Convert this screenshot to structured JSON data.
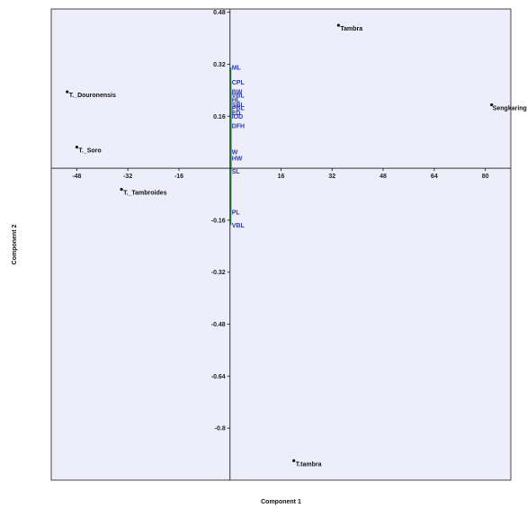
{
  "chart_data": {
    "type": "scatter",
    "title": "",
    "xlabel": "Component 1",
    "ylabel": "Component 2",
    "xlim": [
      -56,
      88
    ],
    "ylim": [
      -0.96,
      0.49
    ],
    "x_ticks": [
      -48,
      -32,
      -16,
      16,
      32,
      48,
      64,
      80
    ],
    "y_ticks": [
      0.48,
      0.32,
      0.16,
      -0.16,
      -0.32,
      -0.48,
      -0.64,
      -0.8
    ],
    "grid": false,
    "points": [
      {
        "label": "Tambra",
        "x": 34,
        "y": 0.44
      },
      {
        "label": "Sengkaring",
        "x": 82,
        "y": 0.195
      },
      {
        "label": "T._Douronensis",
        "x": -51,
        "y": 0.235
      },
      {
        "label": "T._Soro",
        "x": -48,
        "y": 0.065
      },
      {
        "label": "T._Tambroides",
        "x": -34,
        "y": -0.065
      },
      {
        "label": "T.tambra",
        "x": 20,
        "y": -0.9
      }
    ],
    "loadings": [
      {
        "label": "ML",
        "x": 0,
        "y": 0.31
      },
      {
        "label": "CPL",
        "x": 0,
        "y": 0.265
      },
      {
        "label": "BW",
        "x": 0,
        "y": 0.235
      },
      {
        "label": "VBL",
        "x": 0,
        "y": 0.225
      },
      {
        "label": "HL",
        "x": 0,
        "y": 0.21
      },
      {
        "label": "SBL",
        "x": 0,
        "y": 0.195
      },
      {
        "label": "PBL",
        "x": 0,
        "y": 0.185
      },
      {
        "label": "ED",
        "x": 0,
        "y": 0.17
      },
      {
        "label": "IOD",
        "x": 0,
        "y": 0.16
      },
      {
        "label": "DFH",
        "x": 0,
        "y": 0.13
      },
      {
        "label": "W",
        "x": 0,
        "y": 0.05
      },
      {
        "label": "HW",
        "x": 0,
        "y": 0.03
      },
      {
        "label": "SL",
        "x": 0,
        "y": -0.01
      },
      {
        "label": "PL",
        "x": 0,
        "y": -0.135
      },
      {
        "label": "VBL",
        "x": 0,
        "y": -0.175
      }
    ],
    "colors": {
      "plot_background": "#eeeefb",
      "points": "#111111",
      "loading_labels": "#2b3bb8",
      "loading_lines": "#1a7a2a"
    }
  }
}
